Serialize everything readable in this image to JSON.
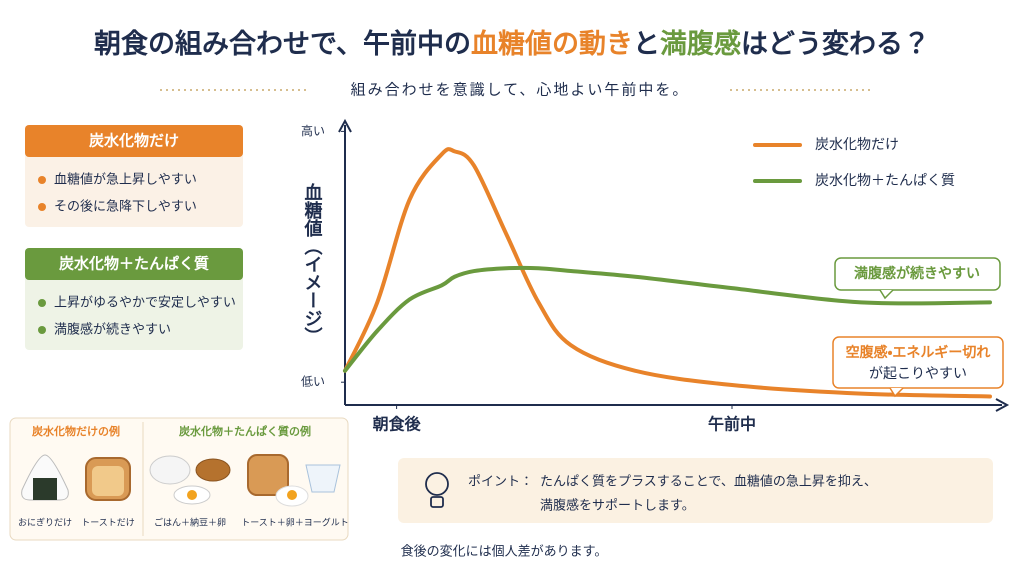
{
  "title": {
    "parts": [
      "朝食の組み合わせで、午前中の",
      "血糖値の動き",
      "と",
      "満腹感",
      "はどう変わる？"
    ]
  },
  "subtitle": "組み合わせを意識して、心地よい午前中を。",
  "panels": [
    {
      "heading": "炭水化物だけ",
      "items": [
        "血糖値が急上昇しやすい",
        "その後に急降下しやすい"
      ]
    },
    {
      "heading": "炭水化物＋たんぱく質",
      "items": [
        "上昇がゆるやかで安定しやすい",
        "満腹感が続きやすい"
      ]
    }
  ],
  "chart_data": {
    "type": "line",
    "y_label": "血糖値（イメージ）",
    "x": [
      0,
      5,
      10,
      15,
      17,
      20,
      25,
      30,
      35,
      45,
      60,
      80,
      100
    ],
    "xlim": [
      0,
      100
    ],
    "xticks": [
      {
        "value": 8,
        "label": "朝食後"
      },
      {
        "value": 60,
        "label": "午前中"
      }
    ],
    "ylim": [
      0,
      100
    ],
    "yticks": [
      {
        "value": 96,
        "label": "高い"
      },
      {
        "value": 8,
        "label": "低い"
      }
    ],
    "series": [
      {
        "name": "炭水化物だけ",
        "color": "#e8832a",
        "values": [
          12,
          36,
          72,
          88,
          89,
          84,
          60,
          36,
          21,
          12,
          7,
          4,
          3
        ]
      },
      {
        "name": "炭水化物＋たんぱく質",
        "color": "#6a9a3e",
        "values": [
          12,
          26,
          37,
          42,
          45,
          47,
          48,
          48,
          47,
          45,
          41,
          36,
          36
        ]
      }
    ],
    "annotations": [
      {
        "lines": [
          "満腹感が続きやすい"
        ]
      },
      {
        "lines": [
          "空腹感・エネルギー切れ",
          "が起こりやすい"
        ]
      }
    ]
  },
  "examples": [
    {
      "heading": "炭水化物だけの例",
      "items": [
        "おにぎりだけ",
        "トーストだけ"
      ]
    },
    {
      "heading": "炭水化物＋たんぱく質の例",
      "items": [
        "ごはん＋納豆＋卵",
        "トースト＋卵＋ヨーグルト"
      ]
    }
  ],
  "point": {
    "label": "ポイント：",
    "lines": [
      "たんぱく質をプラスすることで、血糖値の急上昇を抑え、",
      "満腹感をサポートします。"
    ]
  },
  "footnote": "食後の変化には個人差があります。"
}
